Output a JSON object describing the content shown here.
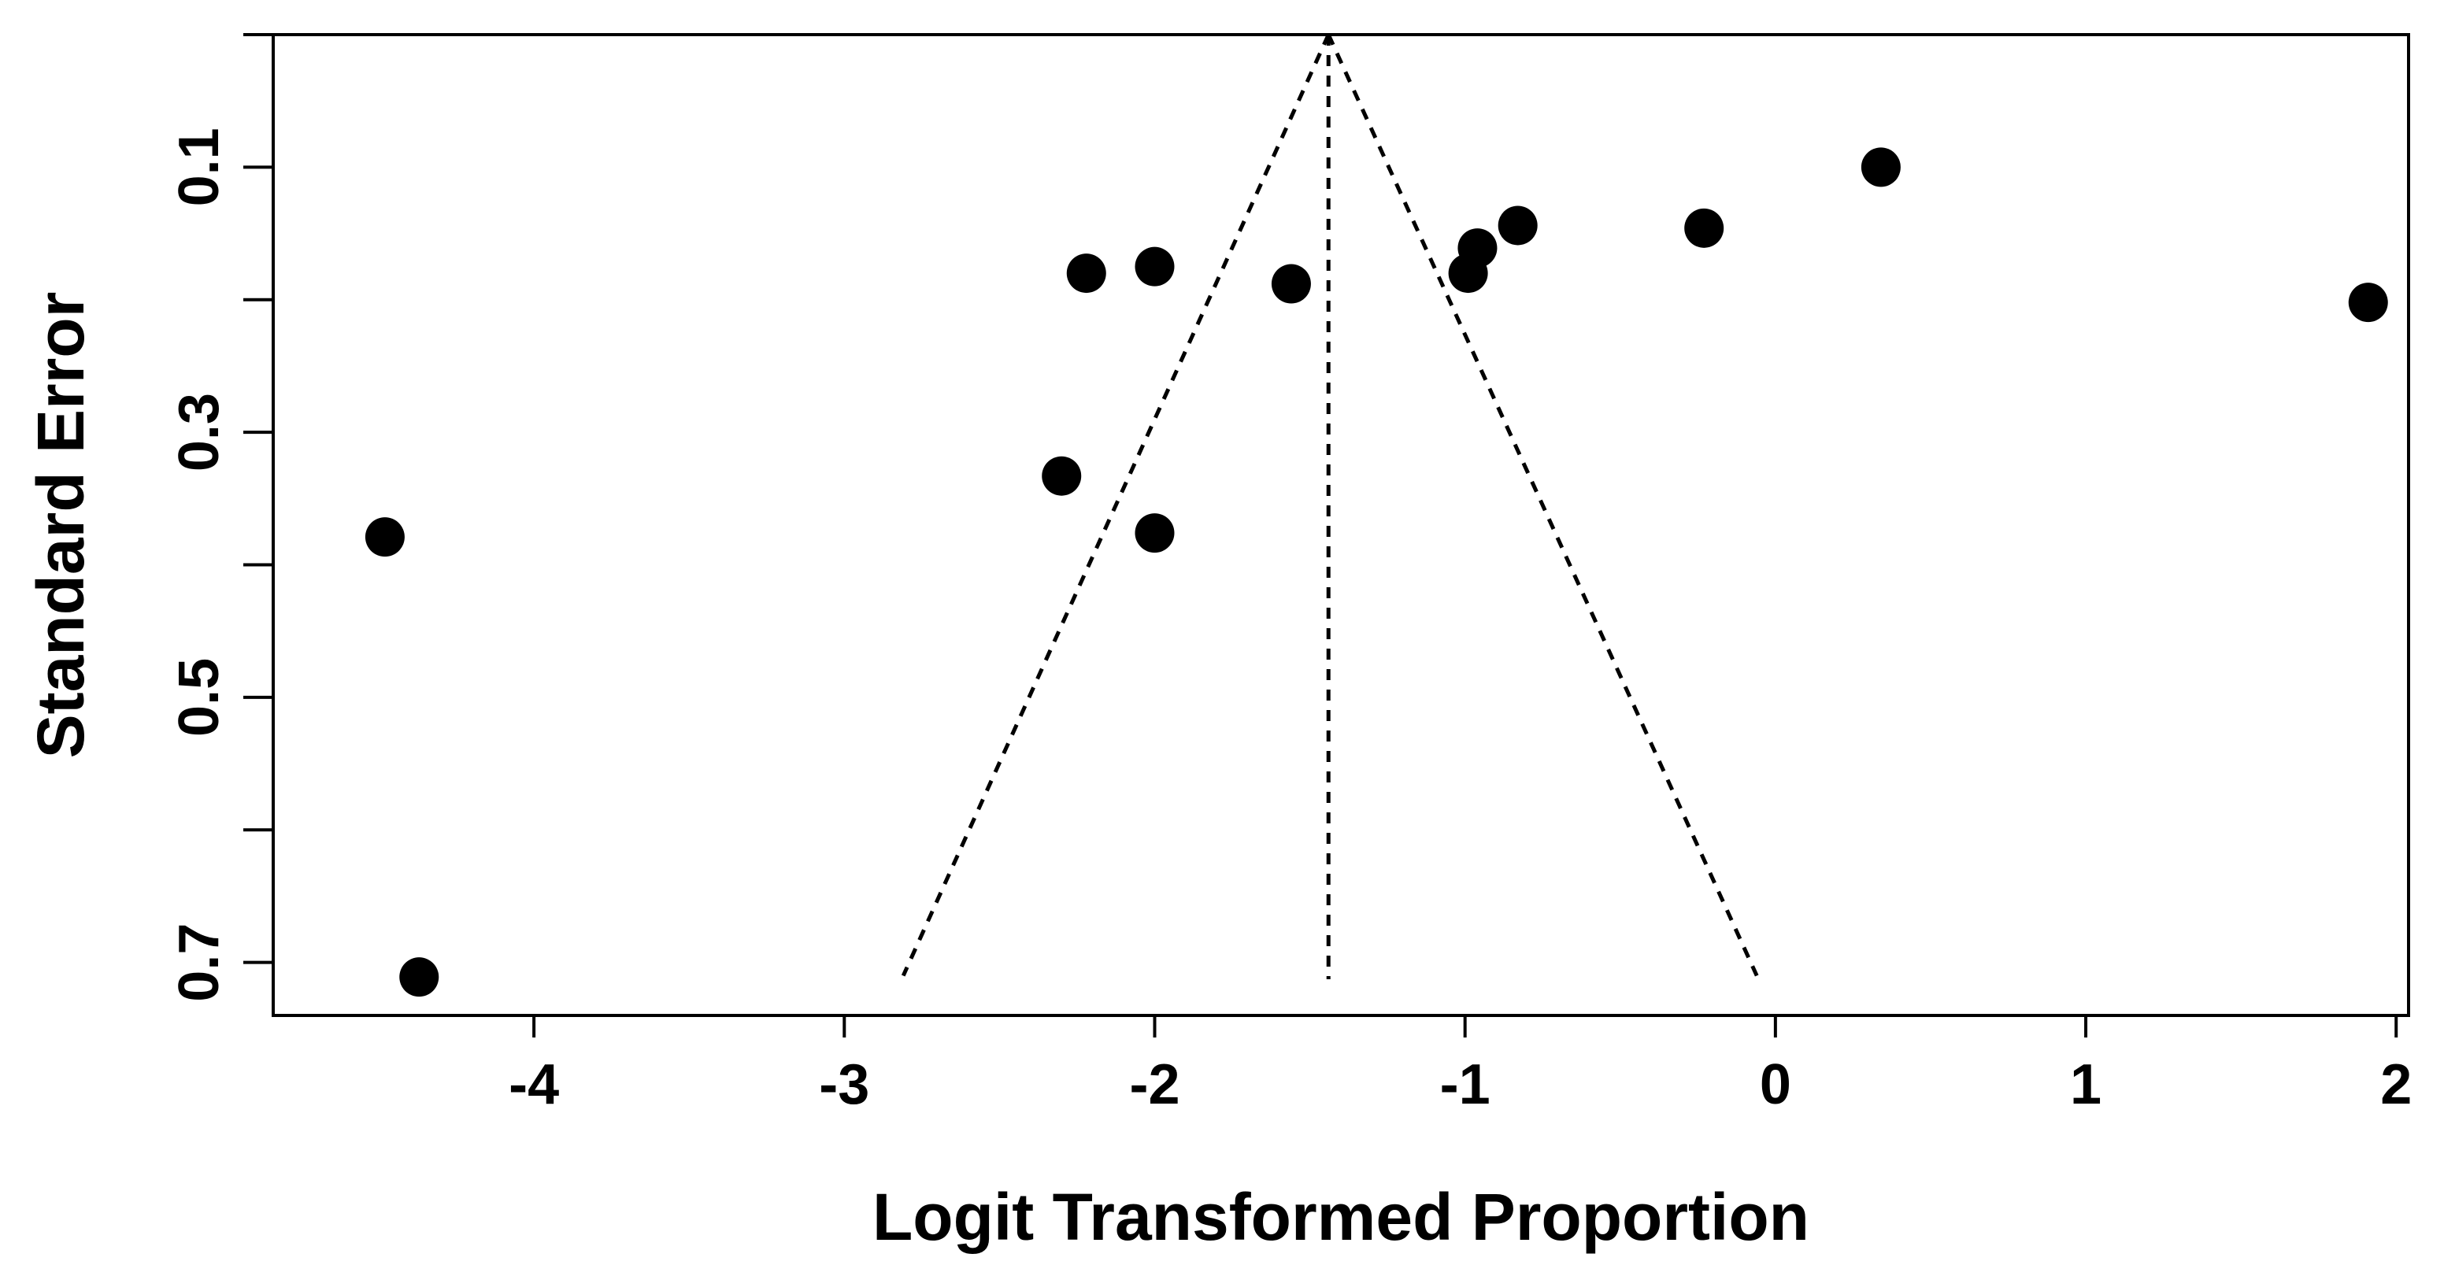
{
  "chart_data": {
    "type": "scatter",
    "title": "",
    "xlabel": "Logit Transformed Proportion",
    "ylabel": "Standard Error",
    "xlim": [
      -4.84,
      2.04
    ],
    "ylim": [
      0.0,
      0.74
    ],
    "y_reversed": true,
    "x_ticks": [
      -4,
      -3,
      -2,
      -1,
      0,
      1,
      2
    ],
    "x_tick_labels": [
      "-4",
      "-3",
      "-2",
      "-1",
      "0",
      "1",
      "2"
    ],
    "y_ticks": [
      0.0,
      0.1,
      0.2,
      0.3,
      0.4,
      0.5,
      0.6,
      0.7
    ],
    "y_tick_labels": [
      "",
      "0.1",
      "",
      "0.3",
      "",
      "0.5",
      "",
      "0.7"
    ],
    "grid": false,
    "legend": "none",
    "points": [
      {
        "x": -4.48,
        "y": 0.379
      },
      {
        "x": -4.37,
        "y": 0.711
      },
      {
        "x": -2.3,
        "y": 0.333
      },
      {
        "x": -2.22,
        "y": 0.18
      },
      {
        "x": -2.0,
        "y": 0.175
      },
      {
        "x": -2.0,
        "y": 0.376
      },
      {
        "x": -1.56,
        "y": 0.188
      },
      {
        "x": -0.99,
        "y": 0.18
      },
      {
        "x": -0.96,
        "y": 0.161
      },
      {
        "x": -0.83,
        "y": 0.144
      },
      {
        "x": -0.23,
        "y": 0.146
      },
      {
        "x": 0.34,
        "y": 0.1
      },
      {
        "x": 1.91,
        "y": 0.202
      }
    ],
    "funnel": {
      "center_x": -1.44,
      "apex_se": 0.0,
      "max_se": 0.71,
      "left_bottom_x": -2.81,
      "right_bottom_x": -0.06
    },
    "colors": {
      "points": "#000000",
      "lines": "#000000"
    }
  }
}
